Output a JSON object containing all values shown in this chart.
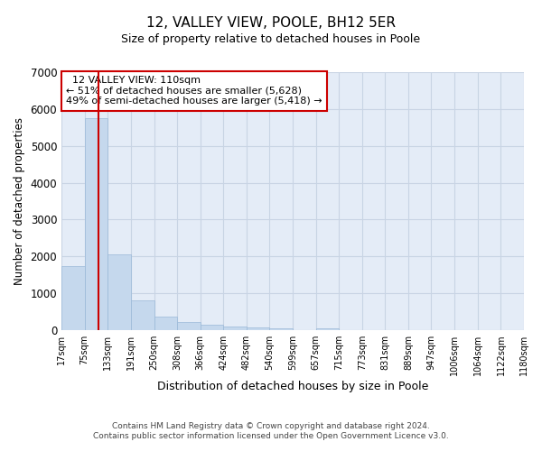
{
  "title": "12, VALLEY VIEW, POOLE, BH12 5ER",
  "subtitle": "Size of property relative to detached houses in Poole",
  "xlabel": "Distribution of detached houses by size in Poole",
  "ylabel": "Number of detached properties",
  "footer_line1": "Contains HM Land Registry data © Crown copyright and database right 2024.",
  "footer_line2": "Contains public sector information licensed under the Open Government Licence v3.0.",
  "annotation_title": "12 VALLEY VIEW: 110sqm",
  "annotation_line2": "← 51% of detached houses are smaller (5,628)",
  "annotation_line3": "49% of semi-detached houses are larger (5,418) →",
  "property_size_sqm": 110,
  "bar_color": "#c5d8ed",
  "bar_edge_color": "#9ab8d8",
  "vline_color": "#cc0000",
  "grid_color": "#c8d4e4",
  "background_color": "#e4ecf7",
  "bin_edges": [
    17,
    75,
    133,
    191,
    250,
    308,
    366,
    424,
    482,
    540,
    599,
    657,
    715,
    773,
    831,
    889,
    947,
    1006,
    1064,
    1122,
    1180
  ],
  "bin_counts": [
    1750,
    5750,
    2050,
    820,
    370,
    230,
    150,
    100,
    65,
    45,
    0,
    40,
    0,
    0,
    0,
    0,
    0,
    0,
    0,
    0
  ],
  "ylim": [
    0,
    7000
  ],
  "yticks": [
    0,
    1000,
    2000,
    3000,
    4000,
    5000,
    6000,
    7000
  ],
  "figsize": [
    6.0,
    5.0
  ],
  "dpi": 100
}
